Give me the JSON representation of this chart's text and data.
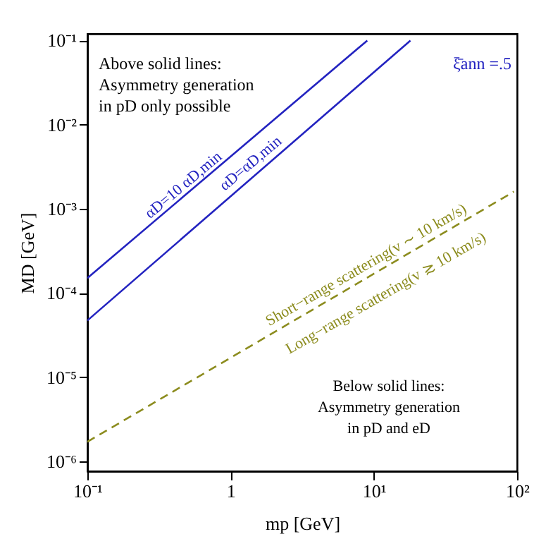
{
  "chart_data": {
    "type": "line",
    "xlabel": "mp   [GeV]",
    "ylabel": "MD   [GeV]",
    "log": "xy",
    "xlim": [
      0.1,
      100
    ],
    "ylim": [
      7.6e-07,
      0.12
    ],
    "xticks": [
      {
        "value": 0.1,
        "label": "10⁻¹"
      },
      1,
      {
        "value": 10,
        "label": "10¹"
      },
      {
        "value": 100,
        "label": "10²"
      }
    ],
    "yticks": [
      {
        "value": 1e-06,
        "label": "10⁻⁶"
      },
      {
        "value": 1e-05,
        "label": "10⁻⁵"
      },
      {
        "value": 0.0001,
        "label": "10⁻⁴"
      },
      {
        "value": 0.001,
        "label": "10⁻³"
      },
      {
        "value": 0.01,
        "label": "10⁻²"
      },
      {
        "value": 0.1,
        "label": "10⁻¹"
      }
    ],
    "grid": false,
    "legend": false,
    "series": [
      {
        "x": [
          0.1,
          9
        ],
        "values": [
          0.00015,
          0.1
        ],
        "color": "#2323c0",
        "line_style": "solid"
      },
      {
        "x": [
          0.1,
          18
        ],
        "values": [
          4.7e-05,
          0.1
        ],
        "color": "#2323c0",
        "line_style": "solid"
      },
      {
        "x": [
          0.1,
          95
        ],
        "values": [
          1.7e-06,
          0.0016
        ],
        "color": "#8c8c1e",
        "line_style": "dashed"
      }
    ],
    "annotations": [
      "Above solid lines:\nAsymmetry generation\nin pD only possible",
      "ξ̄ann =.5",
      {
        "text": "αD=10 αD,min",
        "x": 0.47,
        "y": 0.0019
      },
      "αD=αD,min",
      "Short−range scattering(v ∼ 10 km/s)",
      "Long−range scattering(v ≳ 10 km/s)",
      "Below solid lines:\nAsymmetry generation\nin pD and eD"
    ]
  }
}
